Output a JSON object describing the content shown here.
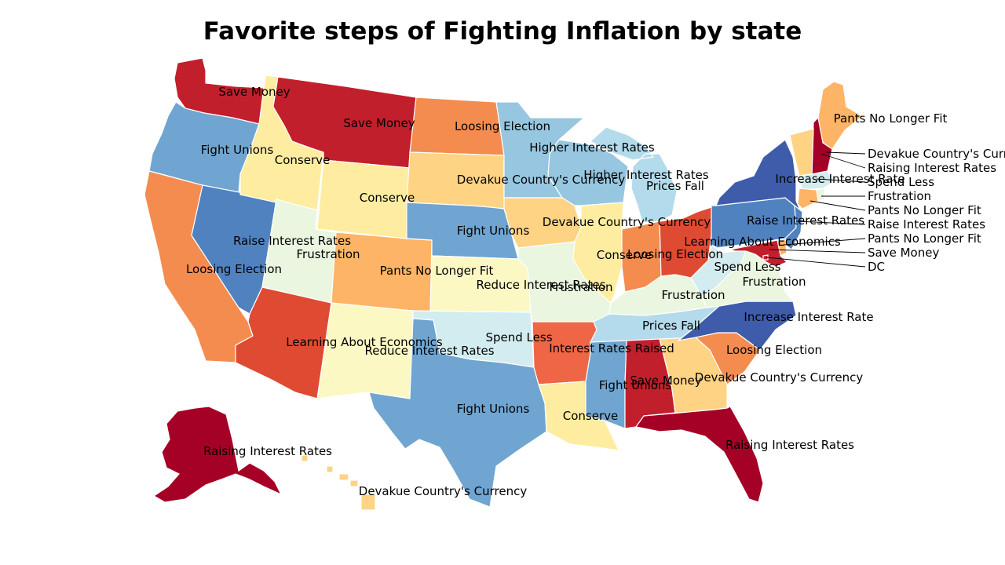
{
  "title": "Favorite steps of Fighting Inflation by state",
  "palette": {
    "Raising Interest Rates": "#a50026",
    "Save Money": "#c21f2c",
    "Learning About Economics": "#df4a33",
    "Interest Rates Raised": "#ef6646",
    "Loosing Election": "#f48c50",
    "Pants No Longer Fit": "#fdb466",
    "Devakue Country's Currency": "#fed384",
    "Conserve": "#feeca0",
    "Reduce Interest Rates": "#fbf8c4",
    "Frustration": "#eaf6df",
    "Spend Less": "#d3ecef",
    "Prices Fall": "#b3dbeb",
    "Higher Interest Rates": "#96c6e0",
    "Fight Unions": "#6fa5d0",
    "Raise Interest Rates": "#5082c0",
    "Increase Interest Rate": "#3e5ca9"
  },
  "states": [
    {
      "id": "WA",
      "value": "Save Money"
    },
    {
      "id": "OR",
      "value": "Fight Unions"
    },
    {
      "id": "CA",
      "value": "Loosing Election"
    },
    {
      "id": "NV",
      "value": "Raise Interest Rates"
    },
    {
      "id": "ID",
      "value": "Conserve"
    },
    {
      "id": "MT",
      "value": "Save Money"
    },
    {
      "id": "WY",
      "value": "Conserve"
    },
    {
      "id": "UT",
      "value": "Frustration"
    },
    {
      "id": "AZ",
      "value": "Learning About Economics"
    },
    {
      "id": "CO",
      "value": "Pants No Longer Fit"
    },
    {
      "id": "NM",
      "value": "Reduce Interest Rates"
    },
    {
      "id": "ND",
      "value": "Loosing Election"
    },
    {
      "id": "SD",
      "value": "Devakue Country's Currency"
    },
    {
      "id": "NE",
      "value": "Fight Unions"
    },
    {
      "id": "KS",
      "value": "Reduce Interest Rates"
    },
    {
      "id": "OK",
      "value": "Spend Less"
    },
    {
      "id": "TX",
      "value": "Fight Unions"
    },
    {
      "id": "MN",
      "value": "Higher Interest Rates"
    },
    {
      "id": "IA",
      "value": "Devakue Country's Currency"
    },
    {
      "id": "MO",
      "value": "Frustration"
    },
    {
      "id": "AR",
      "value": "Interest Rates Raised"
    },
    {
      "id": "LA",
      "value": "Conserve"
    },
    {
      "id": "WI",
      "value": "Higher Interest Rates"
    },
    {
      "id": "MI",
      "value": "Prices Fall"
    },
    {
      "id": "IL",
      "value": "Conserve"
    },
    {
      "id": "IN",
      "value": "Loosing Election"
    },
    {
      "id": "OH",
      "value": "Learning About Economics"
    },
    {
      "id": "KY",
      "value": "Frustration"
    },
    {
      "id": "TN",
      "value": "Prices Fall"
    },
    {
      "id": "MS",
      "value": "Fight Unions"
    },
    {
      "id": "AL",
      "value": "Save Money"
    },
    {
      "id": "GA",
      "value": "Devakue Country's Currency"
    },
    {
      "id": "FL",
      "value": "Raising Interest Rates"
    },
    {
      "id": "SC",
      "value": "Loosing Election"
    },
    {
      "id": "NC",
      "value": "Increase Interest Rate"
    },
    {
      "id": "VA",
      "value": "Frustration"
    },
    {
      "id": "WV",
      "value": "Spend Less"
    },
    {
      "id": "PA",
      "value": "Raise Interest Rates"
    },
    {
      "id": "NY",
      "value": "Increase Interest Rate"
    },
    {
      "id": "ME",
      "value": "Pants No Longer Fit"
    },
    {
      "id": "NH",
      "value": "Raising Interest Rates"
    },
    {
      "id": "VT",
      "value": "Devakue Country's Currency"
    },
    {
      "id": "MA",
      "value": "Spend Less"
    },
    {
      "id": "RI",
      "value": "Frustration"
    },
    {
      "id": "CT",
      "value": "Pants No Longer Fit"
    },
    {
      "id": "NJ",
      "value": "Raise Interest Rates"
    },
    {
      "id": "DE",
      "value": "Pants No Longer Fit"
    },
    {
      "id": "MD",
      "value": "Save Money"
    },
    {
      "id": "DC",
      "value": "DC"
    },
    {
      "id": "AK",
      "value": "Raising Interest Rates"
    },
    {
      "id": "HI",
      "value": "Devakue Country's Currency"
    }
  ]
}
